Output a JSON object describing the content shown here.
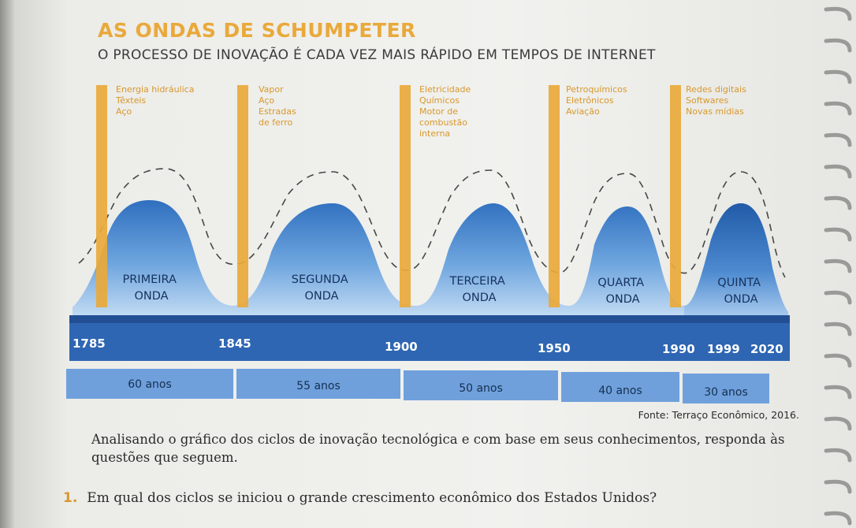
{
  "title": "AS ONDAS DE SCHUMPETER",
  "subtitle": "O PROCESSO DE INOVAÇÃO É CADA VEZ MAIS RÁPIDO EM TEMPOS DE INTERNET",
  "colors": {
    "accent_orange": "#e9a93a",
    "wave_blue": "#3f80c4",
    "band_blue": "#2f66b3",
    "duration_blue": "#6fa0dc"
  },
  "innovations": [
    {
      "lines": [
        "Energia hidráulica",
        "Têxteis",
        "Aço"
      ]
    },
    {
      "lines": [
        "Vapor",
        "Aço",
        "Estradas",
        "de ferro"
      ]
    },
    {
      "lines": [
        "Eletricidade",
        "Químicos",
        "Motor de",
        "combustão",
        "interna"
      ]
    },
    {
      "lines": [
        "Petroquímicos",
        "Eletrônicos",
        "Aviação"
      ]
    },
    {
      "lines": [
        "Redes digitais",
        "Softwares",
        "Novas mídias"
      ]
    }
  ],
  "waves": [
    {
      "lines": [
        "PRIMEIRA",
        "ONDA"
      ]
    },
    {
      "lines": [
        "SEGUNDA",
        "ONDA"
      ]
    },
    {
      "lines": [
        "TERCEIRA",
        "ONDA"
      ]
    },
    {
      "lines": [
        "QUARTA",
        "ONDA"
      ]
    },
    {
      "lines": [
        "QUINTA",
        "ONDA"
      ]
    }
  ],
  "years": [
    "1785",
    "1845",
    "1900",
    "1950",
    "1990",
    "1999",
    "2020"
  ],
  "durations": [
    "60 anos",
    "55 anos",
    "50 anos",
    "40 anos",
    "30 anos"
  ],
  "source": "Fonte: Terraço Econômico, 2016.",
  "prompt": "Analisando o gráfico dos ciclos de inovação tecnológica e com base em seus conhecimentos, responda às questões que seguem.",
  "question": {
    "number": "1.",
    "text": "Em qual dos ciclos se iniciou o grande crescimento econômico dos Estados Unidos?"
  }
}
